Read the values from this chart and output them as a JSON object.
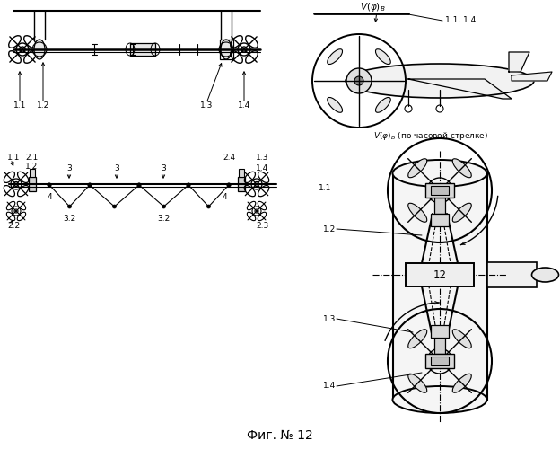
{
  "title": "Фиг. № 12",
  "bg_color": "#ffffff",
  "line_color": "#000000",
  "fig_width": 6.24,
  "fig_height": 5.0,
  "dpi": 100
}
